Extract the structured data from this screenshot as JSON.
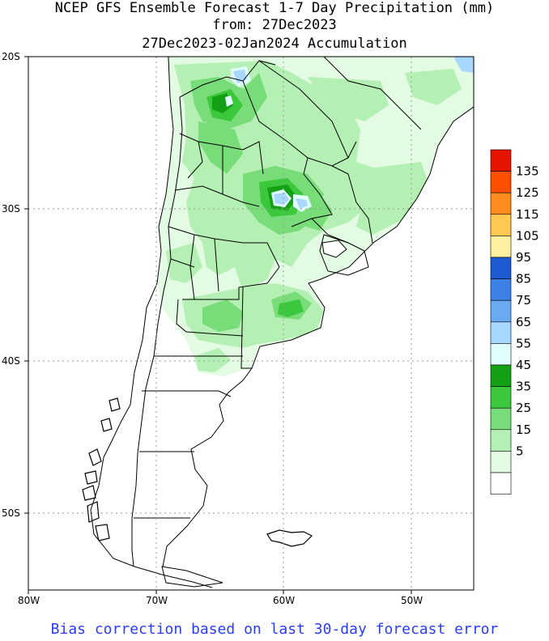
{
  "title_line1": "NCEP GFS Ensemble Forecast 1-7 Day Precipitation (mm)",
  "title_line2": "from: 27Dec2023",
  "title_line3": "27Dec2023-02Jan2024 Accumulation",
  "footer": "Bias correction based on last 30-day forecast error",
  "axes": {
    "lat_labels": [
      "20S",
      "30S",
      "40S",
      "50S"
    ],
    "lon_labels": [
      "80W",
      "70W",
      "60W",
      "50W"
    ]
  },
  "legend": {
    "levels": [
      "5",
      "15",
      "25",
      "35",
      "45",
      "55",
      "65",
      "75",
      "85",
      "95",
      "105",
      "115",
      "125",
      "135"
    ],
    "colors": [
      "#ffffff",
      "#e3fae3",
      "#b4f0b4",
      "#78dc78",
      "#3cc83c",
      "#14a014",
      "#e0ffff",
      "#a8d8ff",
      "#6aaaf0",
      "#3c82e6",
      "#1e5ad2",
      "#fff0a0",
      "#ffc850",
      "#ff8c1e",
      "#ff5000",
      "#e61400"
    ]
  }
}
